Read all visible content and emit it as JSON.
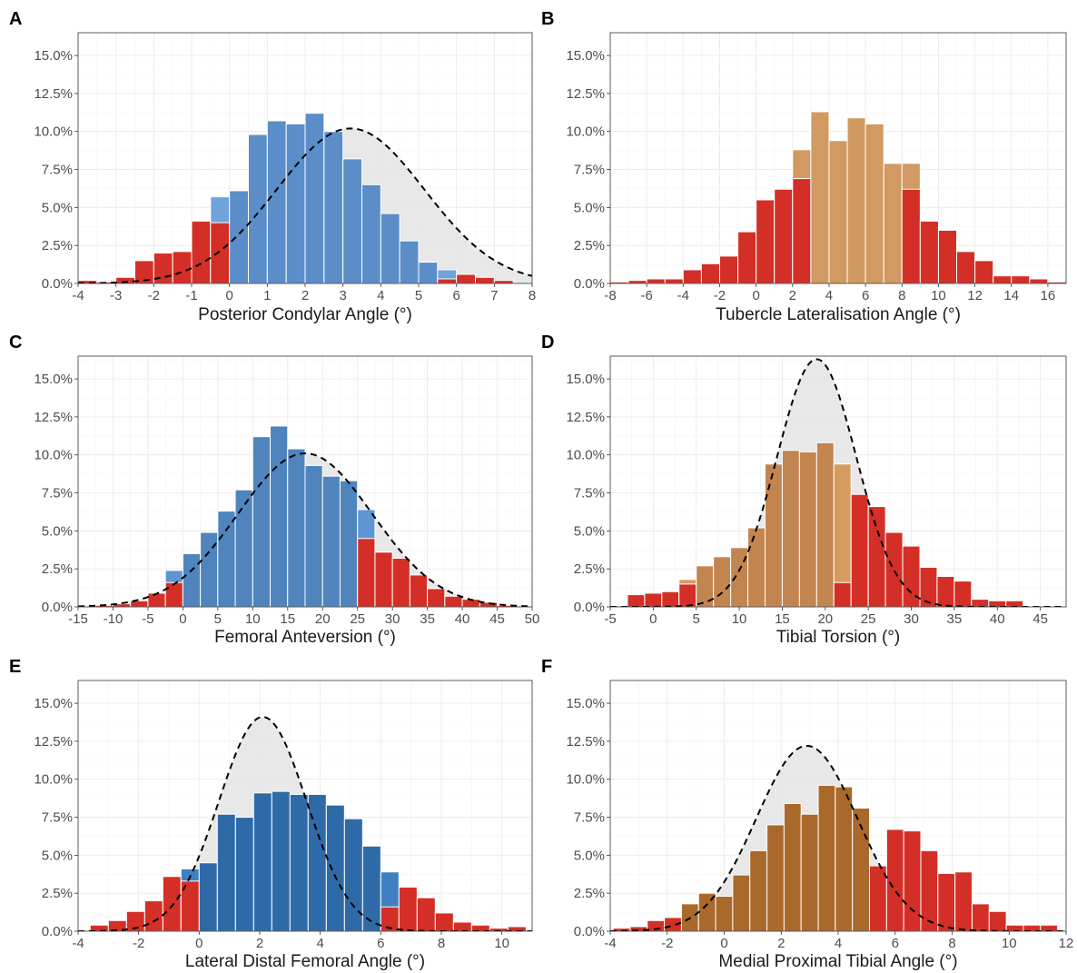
{
  "chart_data": [
    {
      "type": "bar",
      "panel": "A",
      "xlabel": "Posterior Condylar Angle (°)",
      "xlim": [
        -4,
        8
      ],
      "x_ticks": [
        -4,
        -3,
        -2,
        -1,
        0,
        1,
        2,
        3,
        4,
        5,
        6,
        7,
        8
      ],
      "x_tick_labels": [
        "-4",
        "-3",
        "-2",
        "-1",
        "0",
        "1",
        "2",
        "3",
        "4",
        "5",
        "6",
        "7",
        "8"
      ],
      "ylim": [
        0,
        16.5
      ],
      "y_ticks": [
        0,
        2.5,
        5,
        7.5,
        10,
        12.5,
        15
      ],
      "y_tick_labels": [
        "0.0%",
        "2.5%",
        "5.0%",
        "7.5%",
        "10.0%",
        "12.5%",
        "15.0%"
      ],
      "bin_width": 0.5,
      "bin_starts": [
        -4,
        -3.5,
        -3,
        -2.5,
        -2,
        -1.5,
        -1,
        -0.5,
        0,
        0.5,
        1,
        1.5,
        2,
        2.5,
        3,
        3.5,
        4,
        4.5,
        5,
        5.5,
        6,
        6.5,
        7,
        7.5
      ],
      "values": [
        0.2,
        0.1,
        0.4,
        1.5,
        2.0,
        2.1,
        4.1,
        5.7,
        6.1,
        9.8,
        10.7,
        10.5,
        11.2,
        10.0,
        8.2,
        6.5,
        4.6,
        2.8,
        1.4,
        0.9,
        0.6,
        0.4,
        0.2,
        0.0
      ],
      "overlap": [
        0,
        0,
        0,
        0,
        0,
        0,
        0,
        4.0,
        6.1,
        9.8,
        10.7,
        10.5,
        11.2,
        10.0,
        8.2,
        6.5,
        4.6,
        2.8,
        1.4,
        0.3,
        0,
        0,
        0,
        0
      ],
      "density": {
        "mean": 3.2,
        "sd": 1.95,
        "peak": 10.2
      },
      "colors": {
        "in_range": "#5b8ec8",
        "in_range_light": "#6ea3db",
        "out_of_range": "#d32f27"
      }
    },
    {
      "type": "bar",
      "panel": "B",
      "xlabel": "Tubercle Lateralisation Angle (°)",
      "xlim": [
        -8,
        17
      ],
      "x_ticks": [
        -8,
        -6,
        -4,
        -2,
        0,
        2,
        4,
        6,
        8,
        10,
        12,
        14,
        16
      ],
      "x_tick_labels": [
        "-8",
        "-6",
        "-4",
        "-2",
        "0",
        "2",
        "4",
        "6",
        "8",
        "10",
        "12",
        "14",
        "16"
      ],
      "ylim": [
        0,
        16.5
      ],
      "y_ticks": [
        0,
        2.5,
        5,
        7.5,
        10,
        12.5,
        15
      ],
      "y_tick_labels": [
        "0.0%",
        "2.5%",
        "5.0%",
        "7.5%",
        "10.0%",
        "12.5%",
        "15.0%"
      ],
      "bin_width": 1,
      "bin_starts": [
        -8,
        -7,
        -6,
        -5,
        -4,
        -3,
        -2,
        -1,
        0,
        1,
        2,
        3,
        4,
        5,
        6,
        7,
        8,
        9,
        10,
        11,
        12,
        13,
        14,
        15,
        16
      ],
      "values": [
        0.1,
        0.2,
        0.3,
        0.3,
        0.9,
        1.3,
        1.8,
        3.4,
        5.5,
        6.2,
        8.8,
        11.3,
        9.4,
        10.9,
        10.5,
        7.9,
        7.9,
        4.1,
        3.5,
        2.1,
        1.5,
        0.5,
        0.5,
        0.3,
        0.1
      ],
      "overlap": [
        0,
        0,
        0,
        0,
        0,
        0,
        0,
        0,
        0,
        0,
        6.9,
        11.3,
        9.4,
        10.9,
        10.5,
        7.9,
        6.2,
        0,
        0,
        0,
        0,
        0,
        0,
        0,
        0
      ],
      "colors": {
        "in_range": "#d19a62",
        "out_of_range": "#d32f27"
      }
    },
    {
      "type": "bar",
      "panel": "C",
      "xlabel": "Femoral Anteversion (°)",
      "xlim": [
        -15,
        50
      ],
      "x_ticks": [
        -15,
        -10,
        -5,
        0,
        5,
        10,
        15,
        20,
        25,
        30,
        35,
        40,
        45,
        50
      ],
      "x_tick_labels": [
        "-15",
        "-10",
        "-5",
        "0",
        "5",
        "10",
        "15",
        "20",
        "25",
        "30",
        "35",
        "40",
        "45",
        "50"
      ],
      "ylim": [
        0,
        16.5
      ],
      "y_ticks": [
        0,
        2.5,
        5,
        7.5,
        10,
        12.5,
        15
      ],
      "y_tick_labels": [
        "0.0%",
        "2.5%",
        "5.0%",
        "7.5%",
        "10.0%",
        "12.5%",
        "15.0%"
      ],
      "bin_width": 2.5,
      "bin_starts": [
        -15,
        -12.5,
        -10,
        -7.5,
        -5,
        -2.5,
        0,
        2.5,
        5,
        7.5,
        10,
        12.5,
        15,
        17.5,
        20,
        22.5,
        25,
        27.5,
        30,
        32.5,
        35,
        37.5,
        40,
        42.5,
        45,
        47.5
      ],
      "values": [
        0,
        0.1,
        0.2,
        0.4,
        0.9,
        2.4,
        3.5,
        4.9,
        6.3,
        7.7,
        11.2,
        11.9,
        10.4,
        9.3,
        8.6,
        8.3,
        6.4,
        3.6,
        3.2,
        2.1,
        1.2,
        0.7,
        0.5,
        0.3,
        0.1,
        0
      ],
      "overlap": [
        0,
        0,
        0,
        0,
        0,
        1.6,
        3.5,
        4.9,
        6.3,
        7.7,
        11.2,
        11.9,
        10.4,
        9.3,
        8.6,
        8.3,
        4.5,
        0,
        0,
        0,
        0,
        0,
        0,
        0,
        0,
        0
      ],
      "density": {
        "mean": 17.5,
        "sd": 9.6,
        "peak": 10.1
      },
      "colors": {
        "in_range": "#4f84bd",
        "in_range_light": "#5f95d0",
        "out_of_range": "#d32f27"
      }
    },
    {
      "type": "bar",
      "panel": "D",
      "xlabel": "Tibial Torsion (°)",
      "xlim": [
        -5,
        48
      ],
      "x_ticks": [
        -5,
        0,
        5,
        10,
        15,
        20,
        25,
        30,
        35,
        40,
        45
      ],
      "x_tick_labels": [
        "-5",
        "0",
        "5",
        "10",
        "15",
        "20",
        "25",
        "30",
        "35",
        "40",
        "45"
      ],
      "ylim": [
        0,
        16.5
      ],
      "y_ticks": [
        0,
        2.5,
        5,
        7.5,
        10,
        12.5,
        15
      ],
      "y_tick_labels": [
        "0.0%",
        "2.5%",
        "5.0%",
        "7.5%",
        "10.0%",
        "12.5%",
        "15.0%"
      ],
      "bin_width": 2,
      "bin_starts": [
        -5,
        -3,
        -1,
        1,
        3,
        5,
        7,
        9,
        11,
        13,
        15,
        17,
        19,
        21,
        23,
        25,
        27,
        29,
        31,
        33,
        35,
        37,
        39,
        41,
        43
      ],
      "values": [
        0,
        0.8,
        0.9,
        1.0,
        1.8,
        2.7,
        3.3,
        3.9,
        5.2,
        9.4,
        10.3,
        10.2,
        10.8,
        9.4,
        7.4,
        6.6,
        4.9,
        4.0,
        2.6,
        2.0,
        1.7,
        0.5,
        0.4,
        0.4,
        0
      ],
      "overlap": [
        0,
        0,
        0,
        0,
        1.5,
        2.7,
        3.3,
        3.9,
        5.2,
        9.4,
        10.3,
        10.2,
        10.8,
        1.6,
        0,
        0,
        0,
        0,
        0,
        0,
        0,
        0,
        0,
        0,
        0
      ],
      "density": {
        "mean": 19,
        "sd": 4.6,
        "peak": 16.3
      },
      "colors": {
        "in_range": "#c28550",
        "in_range_light": "#d69b5f",
        "out_of_range": "#d32f27"
      }
    },
    {
      "type": "bar",
      "panel": "E",
      "xlabel": "Lateral Distal Femoral Angle (°)",
      "xlim": [
        -4,
        11
      ],
      "x_ticks": [
        -4,
        -2,
        0,
        2,
        4,
        6,
        8,
        10
      ],
      "x_tick_labels": [
        "-4",
        "-2",
        "0",
        "2",
        "4",
        "6",
        "8",
        "10"
      ],
      "ylim": [
        0,
        16.5
      ],
      "y_ticks": [
        0,
        2.5,
        5,
        7.5,
        10,
        12.5,
        15
      ],
      "y_tick_labels": [
        "0.0%",
        "2.5%",
        "5.0%",
        "7.5%",
        "10.0%",
        "12.5%",
        "15.0%"
      ],
      "bin_width": 0.6,
      "bin_starts": [
        -3.6,
        -3.0,
        -2.4,
        -1.8,
        -1.2,
        -0.6,
        0,
        0.6,
        1.2,
        1.8,
        2.4,
        3.0,
        3.6,
        4.2,
        4.8,
        5.4,
        6.0,
        6.6,
        7.2,
        7.8,
        8.4,
        9.0,
        9.6,
        10.2
      ],
      "values": [
        0.4,
        0.7,
        1.3,
        2.0,
        3.6,
        4.1,
        4.5,
        7.7,
        7.5,
        9.1,
        9.2,
        9.0,
        9.0,
        8.3,
        7.4,
        5.6,
        3.9,
        2.9,
        2.2,
        1.2,
        0.6,
        0.4,
        0.2,
        0.3
      ],
      "overlap": [
        0,
        0,
        0,
        0,
        0,
        3.3,
        4.5,
        7.7,
        7.5,
        9.1,
        9.2,
        9.0,
        9.0,
        8.3,
        7.4,
        5.6,
        1.6,
        0,
        0,
        0,
        0,
        0,
        0,
        0
      ],
      "density": {
        "mean": 2.1,
        "sd": 1.45,
        "peak": 14.1
      },
      "colors": {
        "in_range": "#2f6aa8",
        "in_range_light": "#3f7fc2",
        "out_of_range": "#d32f27"
      }
    },
    {
      "type": "bar",
      "panel": "F",
      "xlabel": "Medial Proximal Tibial Angle  (°)",
      "xlim": [
        -4,
        12
      ],
      "x_ticks": [
        -4,
        -2,
        0,
        2,
        4,
        6,
        8,
        10,
        12
      ],
      "x_tick_labels": [
        "-4",
        "-2",
        "0",
        "2",
        "4",
        "6",
        "8",
        "10",
        "12"
      ],
      "ylim": [
        0,
        16.5
      ],
      "y_ticks": [
        0,
        2.5,
        5,
        7.5,
        10,
        12.5,
        15
      ],
      "y_tick_labels": [
        "0.0%",
        "2.5%",
        "5.0%",
        "7.5%",
        "10.0%",
        "12.5%",
        "15.0%"
      ],
      "bin_width": 0.6,
      "bin_starts": [
        -3.9,
        -3.3,
        -2.7,
        -2.1,
        -1.5,
        -0.9,
        -0.3,
        0.3,
        0.9,
        1.5,
        2.1,
        2.7,
        3.3,
        3.9,
        4.5,
        5.1,
        5.7,
        6.3,
        6.9,
        7.5,
        8.1,
        8.7,
        9.3,
        9.9,
        10.5,
        11.1
      ],
      "values": [
        0.2,
        0.3,
        0.7,
        0.9,
        1.8,
        2.5,
        2.3,
        3.7,
        5.3,
        7.0,
        8.4,
        7.7,
        9.6,
        9.5,
        8.1,
        4.3,
        6.7,
        6.6,
        5.3,
        3.8,
        3.9,
        1.8,
        1.3,
        0.4,
        0.4,
        0.4
      ],
      "overlap": [
        0,
        0,
        0,
        0,
        1.8,
        2.5,
        2.3,
        3.7,
        5.3,
        7.0,
        8.4,
        7.7,
        9.6,
        9.5,
        8.1,
        0,
        0,
        0,
        0,
        0,
        0,
        0,
        0,
        0,
        0,
        0
      ],
      "density": {
        "mean": 2.9,
        "sd": 1.78,
        "peak": 12.2
      },
      "colors": {
        "in_range": "#a8692b",
        "in_range_light": "#b87a3a",
        "out_of_range": "#d32f27"
      }
    }
  ]
}
